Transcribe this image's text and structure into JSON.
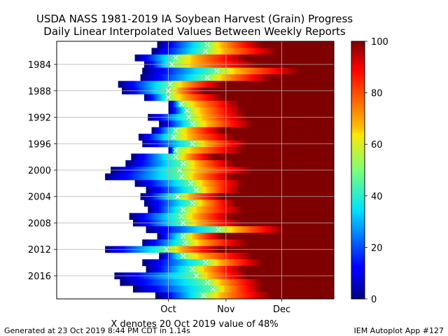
{
  "chart_data": {
    "type": "heatmap",
    "title": "USDA NASS 1981-2019 IA Soybean Harvest (Grain) Progress",
    "subtitle": "Daily Linear Interpolated Values Between Weekly Reports",
    "xlabel": "X denotes 20 Oct 2019 value of 48%",
    "x_ticks": [
      "Oct",
      "Nov",
      "Dec"
    ],
    "y_ticks": [
      "1984",
      "1988",
      "1992",
      "1996",
      "2000",
      "2004",
      "2008",
      "2012",
      "2016"
    ],
    "colorbar_ticks": [
      "0",
      "20",
      "40",
      "60",
      "80",
      "100"
    ],
    "colorbar_range": [
      0,
      100
    ],
    "colormap": "jet",
    "marker": "X",
    "grid": true,
    "rows": [
      {
        "year": 1981,
        "start": "Sep 25",
        "x_on": "Oct 22",
        "full": "Nov 20"
      },
      {
        "year": 1982,
        "start": "Sep 22",
        "x_on": "Oct 21",
        "full": "Nov 28"
      },
      {
        "year": 1983,
        "start": "Sep 13",
        "x_on": "Oct 5",
        "full": "Nov 12"
      },
      {
        "year": 1984,
        "start": "Sep 18",
        "x_on": "Oct 3",
        "full": "Nov 18"
      },
      {
        "year": 1985,
        "start": "Sep 17",
        "x_on": "Oct 27",
        "full": "Dec 10"
      },
      {
        "year": 1986,
        "start": "Sep 16",
        "x_on": "Oct 22",
        "full": "Nov 25"
      },
      {
        "year": 1987,
        "start": "Sep 4",
        "x_on": "Oct 2",
        "full": "Oct 30"
      },
      {
        "year": 1988,
        "start": "Sep 6",
        "x_on": "Oct 1",
        "full": "Oct 20"
      },
      {
        "year": 1989,
        "start": "Sep 18",
        "x_on": "Oct 1",
        "full": "Oct 30"
      },
      {
        "year": 1990,
        "start": "Oct 1",
        "x_on": "Oct 8",
        "full": "Nov 8"
      },
      {
        "year": 1991,
        "start": "Oct 1",
        "x_on": "Oct 11",
        "full": "Nov 10"
      },
      {
        "year": 1992,
        "start": "Sep 20",
        "x_on": "Oct 12",
        "full": "Nov 12"
      },
      {
        "year": 1993,
        "start": "Sep 26",
        "x_on": "Oct 14",
        "full": "Nov 15"
      },
      {
        "year": 1994,
        "start": "Sep 22",
        "x_on": "Oct 5",
        "full": "Oct 30"
      },
      {
        "year": 1995,
        "start": "Sep 15",
        "x_on": "Oct 4",
        "full": "Nov 5"
      },
      {
        "year": 1996,
        "start": "Sep 17",
        "x_on": "Oct 14",
        "full": "Nov 12"
      },
      {
        "year": 1997,
        "start": "Oct 1",
        "x_on": "Oct 5",
        "full": "Nov 10"
      },
      {
        "year": 1998,
        "start": "Sep 11",
        "x_on": "Oct 5",
        "full": "Oct 25"
      },
      {
        "year": 1999,
        "start": "Sep 8",
        "x_on": "Oct 9",
        "full": "Nov 5"
      },
      {
        "year": 2000,
        "start": "Aug 31",
        "x_on": "Oct 7",
        "full": "Nov 15"
      },
      {
        "year": 2001,
        "start": "Aug 28",
        "x_on": "Oct 8",
        "full": "Nov 5"
      },
      {
        "year": 2002,
        "start": "Sep 13",
        "x_on": "Oct 13",
        "full": "Nov 10"
      },
      {
        "year": 2003,
        "start": "Sep 19",
        "x_on": "Oct 16",
        "full": "Nov 8"
      },
      {
        "year": 2004,
        "start": "Sep 16",
        "x_on": "Oct 6",
        "full": "Oct 30"
      },
      {
        "year": 2005,
        "start": "Sep 18",
        "x_on": "Oct 14",
        "full": "Nov 6"
      },
      {
        "year": 2006,
        "start": "Sep 20",
        "x_on": "Oct 9",
        "full": "Nov 10"
      },
      {
        "year": 2007,
        "start": "Sep 10",
        "x_on": "Oct 8",
        "full": "Nov 4"
      },
      {
        "year": 2008,
        "start": "Sep 12",
        "x_on": "Oct 9",
        "full": "Nov 9"
      },
      {
        "year": 2009,
        "start": "Sep 19",
        "x_on": "Oct 28",
        "full": "Dec 2"
      },
      {
        "year": 2010,
        "start": "Sep 25",
        "x_on": "Oct 9",
        "full": "Oct 30"
      },
      {
        "year": 2011,
        "start": "Sep 17",
        "x_on": "Oct 10",
        "full": "Nov 12"
      },
      {
        "year": 2012,
        "start": "Aug 28",
        "x_on": "Sep 30",
        "full": "Oct 28"
      },
      {
        "year": 2013,
        "start": "Sep 26",
        "x_on": "Oct 9",
        "full": "Nov 15"
      },
      {
        "year": 2014,
        "start": "Sep 17",
        "x_on": "Oct 21",
        "full": "Nov 20"
      },
      {
        "year": 2015,
        "start": "Sep 19",
        "x_on": "Oct 14",
        "full": "Nov 10"
      },
      {
        "year": 2016,
        "start": "Sep 2",
        "x_on": "Oct 16",
        "full": "Nov 12"
      },
      {
        "year": 2017,
        "start": "Sep 5",
        "x_on": "Oct 22",
        "full": "Nov 20"
      },
      {
        "year": 2018,
        "start": "Sep 12",
        "x_on": "Oct 25",
        "full": "Nov 20"
      },
      {
        "year": 2019,
        "start": "Sep 24",
        "x_on": "Oct 20",
        "full": "Nov 25"
      }
    ]
  },
  "footer": {
    "generated": "Generated at 23 Oct 2019 8:44 PM CDT in 1.14s",
    "app": "IEM Autoplot App #127"
  }
}
